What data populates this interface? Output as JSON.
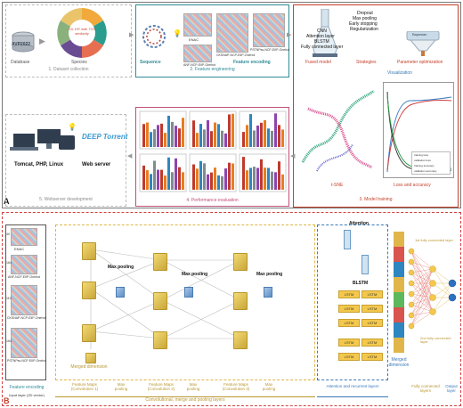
{
  "panel_a": {
    "label": "A",
    "steps": [
      {
        "num_label": "1. Dataset collection"
      },
      {
        "num_label": "2. Feature engineering"
      },
      {
        "num_label": "3. Model training"
      },
      {
        "num_label": "4. Performance evaluation"
      },
      {
        "num_label": "5. Webserver development"
      }
    ],
    "dataset": {
      "database": "Database",
      "species": "Species",
      "db_logo": "AVP2022",
      "cdhit": "CD-HIT with 70% similarity"
    },
    "features": {
      "sequence": "Sequence",
      "encoding": "Feature encoding",
      "enac": "ENAC",
      "anf": "ANF-NCP-EIIP-Onehot",
      "cksnap": "CKSNAP-NCP-EIIP-Onehot",
      "pstnp": "PSTNPss-NCP-EIIP-Onehot",
      "dims": [
        "40",
        "164",
        "119",
        "164"
      ]
    },
    "training": {
      "fused_model": "Fused model",
      "model_layers": [
        "CNN",
        "Attention layer",
        "BLSTM",
        "Fully connected layer"
      ],
      "strategies_list": [
        "Dropout",
        "Max pooling",
        "Early stopping",
        "Regularization"
      ],
      "strategies": "Strategies",
      "bayesian": "Bayesian",
      "param_opt": "Parameter optimization",
      "visualization": "Visualization",
      "tsne": "t-SNE",
      "loss": "Loss and accuracy",
      "legend": [
        "training loss",
        "validation loss",
        "training accuracy",
        "validation accuracy"
      ]
    },
    "web": {
      "stack": "Tomcat, PHP, Linux",
      "server": "Web server",
      "logo": "DEEP Torrent"
    }
  },
  "panel_b": {
    "label": "B",
    "input_dims": [
      "40",
      "164",
      "119",
      "164"
    ],
    "inputs": [
      "ENAC",
      "ANF-NCP-EIIP-Onehot",
      "CKSNAP-NCP-EIIP-Onehot",
      "PSTNPss-NCP-EIIP-Onehot"
    ],
    "feature_encoding": "Feature encoding",
    "input_layer": "Input layer (2D vector)",
    "max_pooling": "Max pooling",
    "merged_dimension": "Merged dimension",
    "attention": "Attention",
    "blstm": "BLSTM",
    "encoder": "Encoder",
    "decoder": "Decoder",
    "feature_dimension": "Feature dimension",
    "transposition_dimension": "Transposition dimension",
    "fc1": "1st fully connected layer",
    "fc2": "2nd fully connected layer",
    "bottom_labels": {
      "fm1": "Feature Maps (Convolution 1)",
      "mp1": "Max pooling",
      "fm2": "Feature Maps (Convolution 2)",
      "mp2": "Max pooling",
      "fm3": "Feature Maps (Convolution 3)",
      "mp3": "Max pooling",
      "conv_group": "Convolutional, merge and pooling layers",
      "att_group": "Attention and recurrent layers",
      "fc_group": "Fully connected layers",
      "out_group": "Output layer"
    }
  }
}
